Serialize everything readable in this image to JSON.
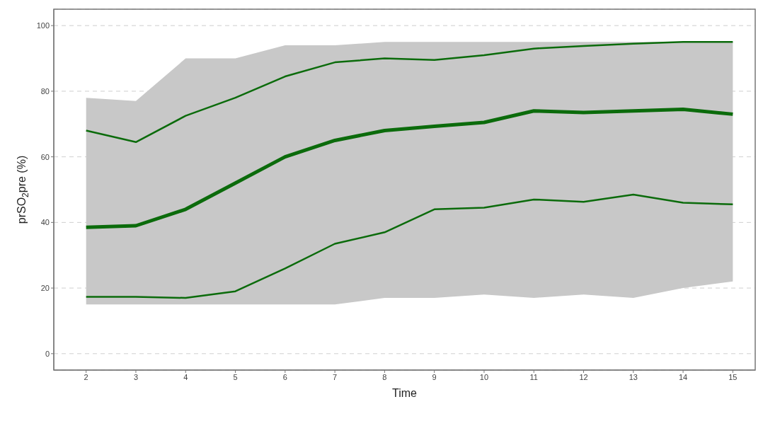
{
  "chart_data": {
    "type": "line",
    "xlabel": "Time",
    "ylabel": "prSO$_{2}$pre (%)",
    "x": [
      2,
      3,
      4,
      5,
      6,
      7,
      8,
      9,
      10,
      11,
      12,
      13,
      14,
      15
    ],
    "series": [
      {
        "color": "#0b6b0b",
        "values": [
          68,
          64.5,
          72.5,
          78,
          84.5,
          88.8,
          90,
          89.5,
          91,
          93,
          93.8,
          94.5,
          95,
          95
        ]
      },
      {
        "color": "#0b6b0b",
        "values": [
          38.5,
          39,
          44,
          52,
          60,
          65,
          68,
          69.3,
          70.5,
          74,
          73.5,
          74,
          74.5,
          73
        ],
        "lower": [
          15,
          15,
          15,
          15,
          15,
          15,
          17,
          17,
          18,
          17,
          18,
          17,
          20,
          22
        ],
        "upper": [
          78,
          77,
          90,
          90,
          94,
          94,
          95,
          95,
          95,
          95,
          95,
          95,
          95,
          95
        ]
      },
      {
        "color": "#0b6b0b",
        "values": [
          17.3,
          17.3,
          17,
          19,
          26,
          33.5,
          37,
          44,
          44.5,
          47,
          46.3,
          48.5,
          46,
          45.5
        ]
      }
    ],
    "xlim": [
      1.35,
      15.45
    ],
    "xticks": [
      2,
      3,
      4,
      5,
      6,
      7,
      8,
      9,
      10,
      11,
      12,
      13,
      14,
      15
    ],
    "ylim": [
      -5,
      105
    ],
    "yticks": [
      0,
      20,
      40,
      60,
      80,
      100
    ],
    "grid": "y",
    "marker": "none",
    "line_style": "solid"
  }
}
